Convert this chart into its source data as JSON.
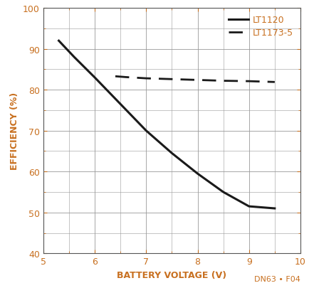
{
  "lt1120_x": [
    5.3,
    5.6,
    6.0,
    6.5,
    7.0,
    7.5,
    8.0,
    8.5,
    9.0,
    9.5
  ],
  "lt1120_y": [
    92,
    88,
    83,
    76.5,
    70,
    64.5,
    59.5,
    55,
    51.5,
    51
  ],
  "lt1173_x": [
    6.4,
    6.6,
    7.0,
    7.5,
    8.0,
    8.5,
    9.0,
    9.5
  ],
  "lt1173_y": [
    83.3,
    83.1,
    82.8,
    82.6,
    82.4,
    82.2,
    82.1,
    81.9
  ],
  "xlabel": "BATTERY VOLTAGE (V)",
  "ylabel": "EFFICIENCY (%)",
  "xlim": [
    5,
    10
  ],
  "ylim": [
    40,
    100
  ],
  "xticks": [
    5,
    6,
    7,
    8,
    9,
    10
  ],
  "yticks": [
    40,
    50,
    60,
    70,
    80,
    90,
    100
  ],
  "legend_labels": [
    "LT1120",
    "LT1173-5"
  ],
  "annotation": "DN63 • F04",
  "line_color": "#1a1a1a",
  "bg_color": "#ffffff",
  "grid_color": "#999999",
  "axis_label_color": "#c87020",
  "tick_label_color": "#c87020",
  "annotation_color": "#c87020",
  "label_fontsize": 9,
  "tick_fontsize": 9,
  "legend_fontsize": 9
}
